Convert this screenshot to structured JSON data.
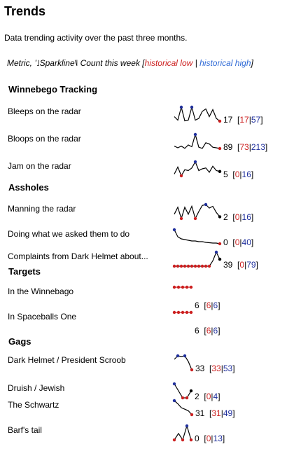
{
  "title": "Trends",
  "description": "Data trending activity over the past three months.",
  "legend": {
    "prefix": "Metric, ",
    "sparkline_text": "’˩Sparkline˥˩",
    "suffix": " Count this week [",
    "historical_low": "historical low",
    "separator": " | ",
    "historical_high": "historical high",
    "close": "]"
  },
  "colors": {
    "low": "#cc1f1f",
    "high": "#1f2f9c",
    "line": "#000000"
  },
  "groups": [
    {
      "name": "Winnebego Tracking",
      "rows": [
        {
          "label": "Bleeps on the radar",
          "count": "17",
          "low": "17",
          "high": "57",
          "spark": [
            30,
            20,
            57,
            18,
            20,
            57,
            20,
            25,
            45,
            52,
            30,
            50,
            25,
            17
          ]
        },
        {
          "label": "Bloops on the radar",
          "count": "89",
          "low": "73",
          "high": "213",
          "spark": [
            110,
            95,
            110,
            90,
            120,
            105,
            213,
            100,
            90,
            140,
            130,
            100,
            95,
            89
          ]
        },
        {
          "label": "Jam on the radar",
          "count": "5",
          "low": "0",
          "high": "16",
          "spark": [
            2,
            10,
            0,
            7,
            6,
            9,
            16,
            6,
            8,
            9,
            4,
            11,
            6,
            5
          ]
        }
      ]
    },
    {
      "name": "Assholes",
      "rows": [
        {
          "label": "Manning the radar",
          "count": "2",
          "low": "0",
          "high": "16",
          "spark": [
            5,
            13,
            0,
            13,
            5,
            14,
            0,
            8,
            15,
            16,
            12,
            14,
            7,
            2
          ]
        },
        {
          "label": "Doing what we asked them to do",
          "count": "0",
          "low": "0",
          "high": "40",
          "spark": [
            40,
            20,
            14,
            12,
            10,
            8,
            8,
            6,
            6,
            4,
            3,
            2,
            2,
            0
          ]
        },
        {
          "label": "Complaints from Dark Helmet about...",
          "count": "39",
          "low": "0",
          "high": "79",
          "spark": [
            0,
            0,
            0,
            0,
            0,
            0,
            0,
            0,
            0,
            0,
            0,
            30,
            79,
            39
          ]
        }
      ]
    },
    {
      "name": "Targets",
      "rows": [
        {
          "label": "In the Winnebago",
          "count": "6",
          "low": "6",
          "high": "6",
          "spark": [
            6,
            6,
            6,
            6,
            6
          ]
        },
        {
          "label": "In Spaceballs One",
          "count": "6",
          "low": "6",
          "high": "6",
          "spark": [
            6,
            6,
            6,
            6,
            6
          ]
        }
      ]
    },
    {
      "name": "Gags",
      "rows": [
        {
          "label": "Dark Helmet / President Scroob",
          "count": "33",
          "low": "33",
          "high": "53",
          "spark": [
            48,
            53,
            52,
            53,
            45,
            33
          ]
        },
        {
          "label": "Druish / Jewish",
          "count": "2",
          "low": "0",
          "high": "4",
          "spark": [
            4,
            2,
            0,
            0,
            2
          ]
        },
        {
          "label": "The Schwartz",
          "count": "31",
          "low": "31",
          "high": "49",
          "spark": [
            49,
            45,
            40,
            38,
            36,
            31
          ]
        },
        {
          "label": "Barf's tail",
          "count": "0",
          "low": "0",
          "high": "13",
          "spark": [
            0,
            6,
            0,
            13,
            0
          ]
        }
      ]
    }
  ]
}
